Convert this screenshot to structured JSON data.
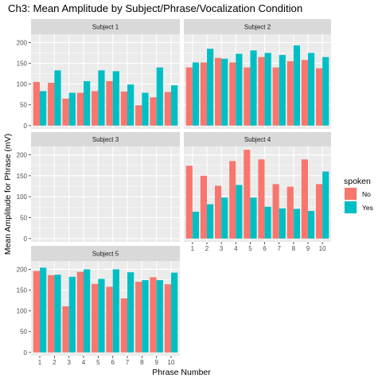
{
  "chart_data": {
    "type": "bar",
    "title": "Ch3: Mean Amplitude by Subject/Phrase/Vocalization Condition",
    "xlabel": "Phrase Number",
    "ylabel": "Mean Amplitude for Phrase (mV)",
    "categories": [
      "1",
      "2",
      "3",
      "4",
      "5",
      "6",
      "7",
      "8",
      "9",
      "10"
    ],
    "ylim": [
      -8,
      220
    ],
    "y_ticks": [
      "0",
      "50",
      "100",
      "150",
      "200"
    ],
    "grid": true,
    "legend": {
      "title": "spoken",
      "position": "right",
      "entries": [
        {
          "label": "No",
          "color": "#F8766D"
        },
        {
          "label": "Yes",
          "color": "#00BFC4"
        }
      ]
    },
    "panels": [
      {
        "strip": "Subject 1",
        "series": [
          {
            "name": "No",
            "values": [
              105,
              103,
              65,
              79,
              83,
              107,
              82,
              49,
              68,
              81
            ]
          },
          {
            "name": "Yes",
            "values": [
              83,
              133,
              79,
              107,
              133,
              131,
              99,
              79,
              140,
              97
            ]
          }
        ]
      },
      {
        "strip": "Subject 2",
        "series": [
          {
            "name": "No",
            "values": [
              140,
              152,
              163,
              152,
              140,
              165,
              140,
              155,
              158,
              138
            ]
          },
          {
            "name": "Yes",
            "values": [
              152,
              185,
              161,
              173,
              181,
              175,
              170,
              193,
              175,
              165
            ]
          }
        ]
      },
      {
        "strip": "Subject 3",
        "series": [
          {
            "name": "No",
            "values": [
              0,
              0,
              0,
              0,
              0,
              0,
              0,
              0,
              0,
              0
            ]
          },
          {
            "name": "Yes",
            "values": [
              0,
              0,
              0,
              0,
              0,
              0,
              0,
              0,
              0,
              0
            ]
          }
        ]
      },
      {
        "strip": "Subject 4",
        "series": [
          {
            "name": "No",
            "values": [
              174,
              150,
              126,
              185,
              212,
              189,
              130,
              124,
              189,
              130
            ]
          },
          {
            "name": "Yes",
            "values": [
              64,
              82,
              98,
              128,
              98,
              76,
              72,
              71,
              66,
              160
            ]
          }
        ]
      },
      {
        "strip": "Subject 5",
        "series": [
          {
            "name": "No",
            "values": [
              196,
              186,
              111,
              194,
              165,
              158,
              130,
              170,
              181,
              164
            ]
          },
          {
            "name": "Yes",
            "values": [
              204,
              187,
              182,
              200,
              177,
              200,
              193,
              174,
              174,
              192
            ]
          }
        ]
      }
    ]
  }
}
